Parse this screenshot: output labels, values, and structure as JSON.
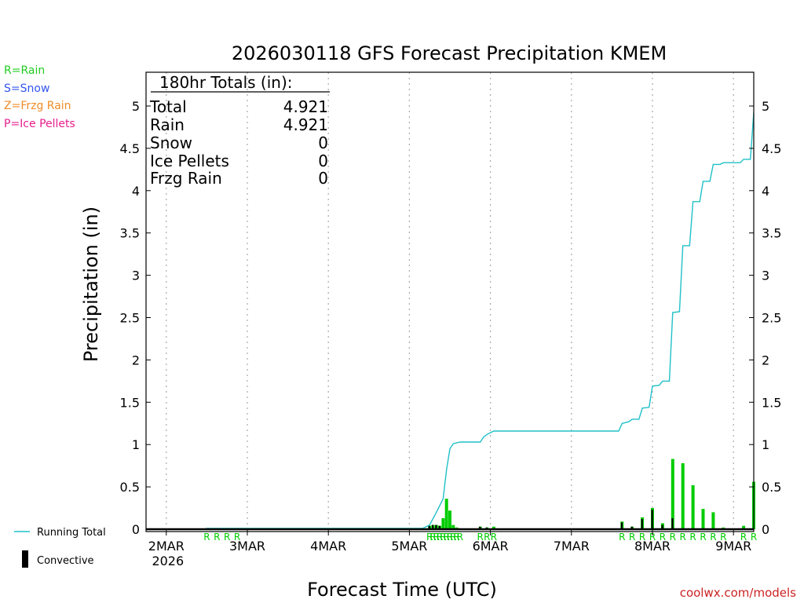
{
  "legend_keys": [
    {
      "text": "R=Rain",
      "color": "#22cc22"
    },
    {
      "text": "S=Snow",
      "color": "#3355ee"
    },
    {
      "text": "Z=Frzg Rain",
      "color": "#f08c28"
    },
    {
      "text": "P=Ice Pellets",
      "color": "#e81e8c"
    }
  ],
  "totals_box": {
    "header": "180hr Totals (in):",
    "rows": [
      {
        "label": "Total",
        "value": "4.921"
      },
      {
        "label": "Rain",
        "value": "4.921"
      },
      {
        "label": "Snow",
        "value": "0"
      },
      {
        "label": "Ice Pellets",
        "value": "0"
      },
      {
        "label": "Frzg Rain",
        "value": "0"
      }
    ]
  },
  "bottom_legend": {
    "running_total": "Running Total",
    "convective": "Convective"
  },
  "credit": "coolwx.com/models",
  "colors": {
    "rain": "#00cc00",
    "line": "#20c0c8",
    "convective": "#000000",
    "grid": "#aaaaaa",
    "credit": "#cc2222"
  },
  "chart_data": {
    "type": "bar",
    "title": "2026030118 GFS Forecast Precipitation KMEM",
    "xlabel": "Forecast Time (UTC)",
    "ylabel": "Precipitation (in)",
    "ylim": [
      0,
      5.5
    ],
    "xlim_hours": [
      0,
      180
    ],
    "y_ticks": [
      0,
      0.5,
      1,
      1.5,
      2,
      2.5,
      3,
      3.5,
      4,
      4.5,
      5
    ],
    "y_tick_labels": [
      "0",
      "0.5",
      "1",
      "1.5",
      "2",
      "2.5",
      "3",
      "3.5",
      "4",
      "4.5",
      "5"
    ],
    "x_ticks": [
      {
        "hour": 6,
        "label": "2MAR",
        "sublabel": "2026"
      },
      {
        "hour": 30,
        "label": "3MAR",
        "sublabel": ""
      },
      {
        "hour": 54,
        "label": "4MAR",
        "sublabel": ""
      },
      {
        "hour": 78,
        "label": "5MAR",
        "sublabel": ""
      },
      {
        "hour": 102,
        "label": "6MAR",
        "sublabel": ""
      },
      {
        "hour": 126,
        "label": "7MAR",
        "sublabel": ""
      },
      {
        "hour": 150,
        "label": "8MAR",
        "sublabel": ""
      },
      {
        "hour": 174,
        "label": "9MAR",
        "sublabel": ""
      }
    ],
    "precip_type_marker": "R",
    "series": [
      {
        "name": "Total 3hr Precip",
        "kind": "bar",
        "hours": [
          18,
          21,
          24,
          27,
          84,
          85,
          86,
          87,
          88,
          89,
          90,
          91,
          92,
          93,
          99,
          101,
          103,
          141,
          144,
          147,
          150,
          153,
          156,
          159,
          162,
          165,
          168,
          171,
          177,
          180
        ],
        "values": [
          0.01,
          0.01,
          0.01,
          0.01,
          0.04,
          0.05,
          0.05,
          0.04,
          0.13,
          0.36,
          0.22,
          0.05,
          0.02,
          0.01,
          0.03,
          0.02,
          0.03,
          0.09,
          0.03,
          0.14,
          0.25,
          0.07,
          0.83,
          0.78,
          0.52,
          0.24,
          0.2,
          0.02,
          0.04,
          0.56
        ]
      },
      {
        "name": "Convective",
        "kind": "bar",
        "hours": [
          84,
          85,
          86,
          87,
          99,
          101,
          141,
          144,
          147,
          150,
          153,
          156
        ],
        "values": [
          0.04,
          0.05,
          0.05,
          0.04,
          0.03,
          0.02,
          0.08,
          0.03,
          0.12,
          0.23,
          0.05,
          0.13
        ]
      },
      {
        "name": "Running Total",
        "kind": "line",
        "points": [
          [
            0,
            0
          ],
          [
            17,
            0
          ],
          [
            18,
            0.01
          ],
          [
            78,
            0.01
          ],
          [
            82,
            0.01
          ],
          [
            84,
            0.05
          ],
          [
            86,
            0.2
          ],
          [
            88,
            0.36
          ],
          [
            89,
            0.7
          ],
          [
            90,
            0.95
          ],
          [
            91,
            1.01
          ],
          [
            93,
            1.03
          ],
          [
            99,
            1.03
          ],
          [
            100,
            1.09
          ],
          [
            101,
            1.12
          ],
          [
            102,
            1.14
          ],
          [
            103,
            1.16
          ],
          [
            140,
            1.16
          ],
          [
            141,
            1.25
          ],
          [
            143,
            1.27
          ],
          [
            144,
            1.3
          ],
          [
            146,
            1.3
          ],
          [
            147,
            1.43
          ],
          [
            149,
            1.44
          ],
          [
            150,
            1.69
          ],
          [
            152,
            1.7
          ],
          [
            153,
            1.75
          ],
          [
            155,
            1.75
          ],
          [
            156,
            2.56
          ],
          [
            158,
            2.57
          ],
          [
            159,
            3.35
          ],
          [
            161,
            3.35
          ],
          [
            162,
            3.87
          ],
          [
            164,
            3.87
          ],
          [
            165,
            4.11
          ],
          [
            167,
            4.11
          ],
          [
            168,
            4.31
          ],
          [
            170,
            4.31
          ],
          [
            171,
            4.33
          ],
          [
            176,
            4.33
          ],
          [
            177,
            4.37
          ],
          [
            179,
            4.37
          ],
          [
            180,
            4.92
          ]
        ]
      }
    ]
  }
}
